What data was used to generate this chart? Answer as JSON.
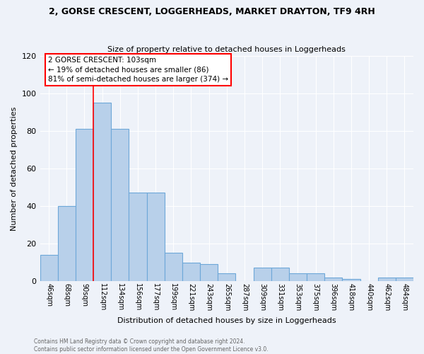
{
  "title": "2, GORSE CRESCENT, LOGGERHEADS, MARKET DRAYTON, TF9 4RH",
  "subtitle": "Size of property relative to detached houses in Loggerheads",
  "xlabel": "Distribution of detached houses by size in Loggerheads",
  "ylabel": "Number of detached properties",
  "categories": [
    "46sqm",
    "68sqm",
    "90sqm",
    "112sqm",
    "134sqm",
    "156sqm",
    "177sqm",
    "199sqm",
    "221sqm",
    "243sqm",
    "265sqm",
    "287sqm",
    "309sqm",
    "331sqm",
    "353sqm",
    "375sqm",
    "396sqm",
    "418sqm",
    "440sqm",
    "462sqm",
    "484sqm"
  ],
  "values": [
    14,
    40,
    81,
    95,
    81,
    47,
    47,
    15,
    10,
    9,
    4,
    0,
    7,
    7,
    4,
    4,
    2,
    1,
    0,
    2,
    2
  ],
  "bar_color": "#b8d0ea",
  "bar_edge_color": "#6ea8d8",
  "ref_line_label": "2 GORSE CRESCENT: 103sqm",
  "annotation_line1": "← 19% of detached houses are smaller (86)",
  "annotation_line2": "81% of semi-detached houses are larger (374) →",
  "ylim": [
    0,
    120
  ],
  "yticks": [
    0,
    20,
    40,
    60,
    80,
    100,
    120
  ],
  "background_color": "#eef2f9",
  "grid_color": "#ffffff",
  "footer1": "Contains HM Land Registry data © Crown copyright and database right 2024.",
  "footer2": "Contains public sector information licensed under the Open Government Licence v3.0."
}
